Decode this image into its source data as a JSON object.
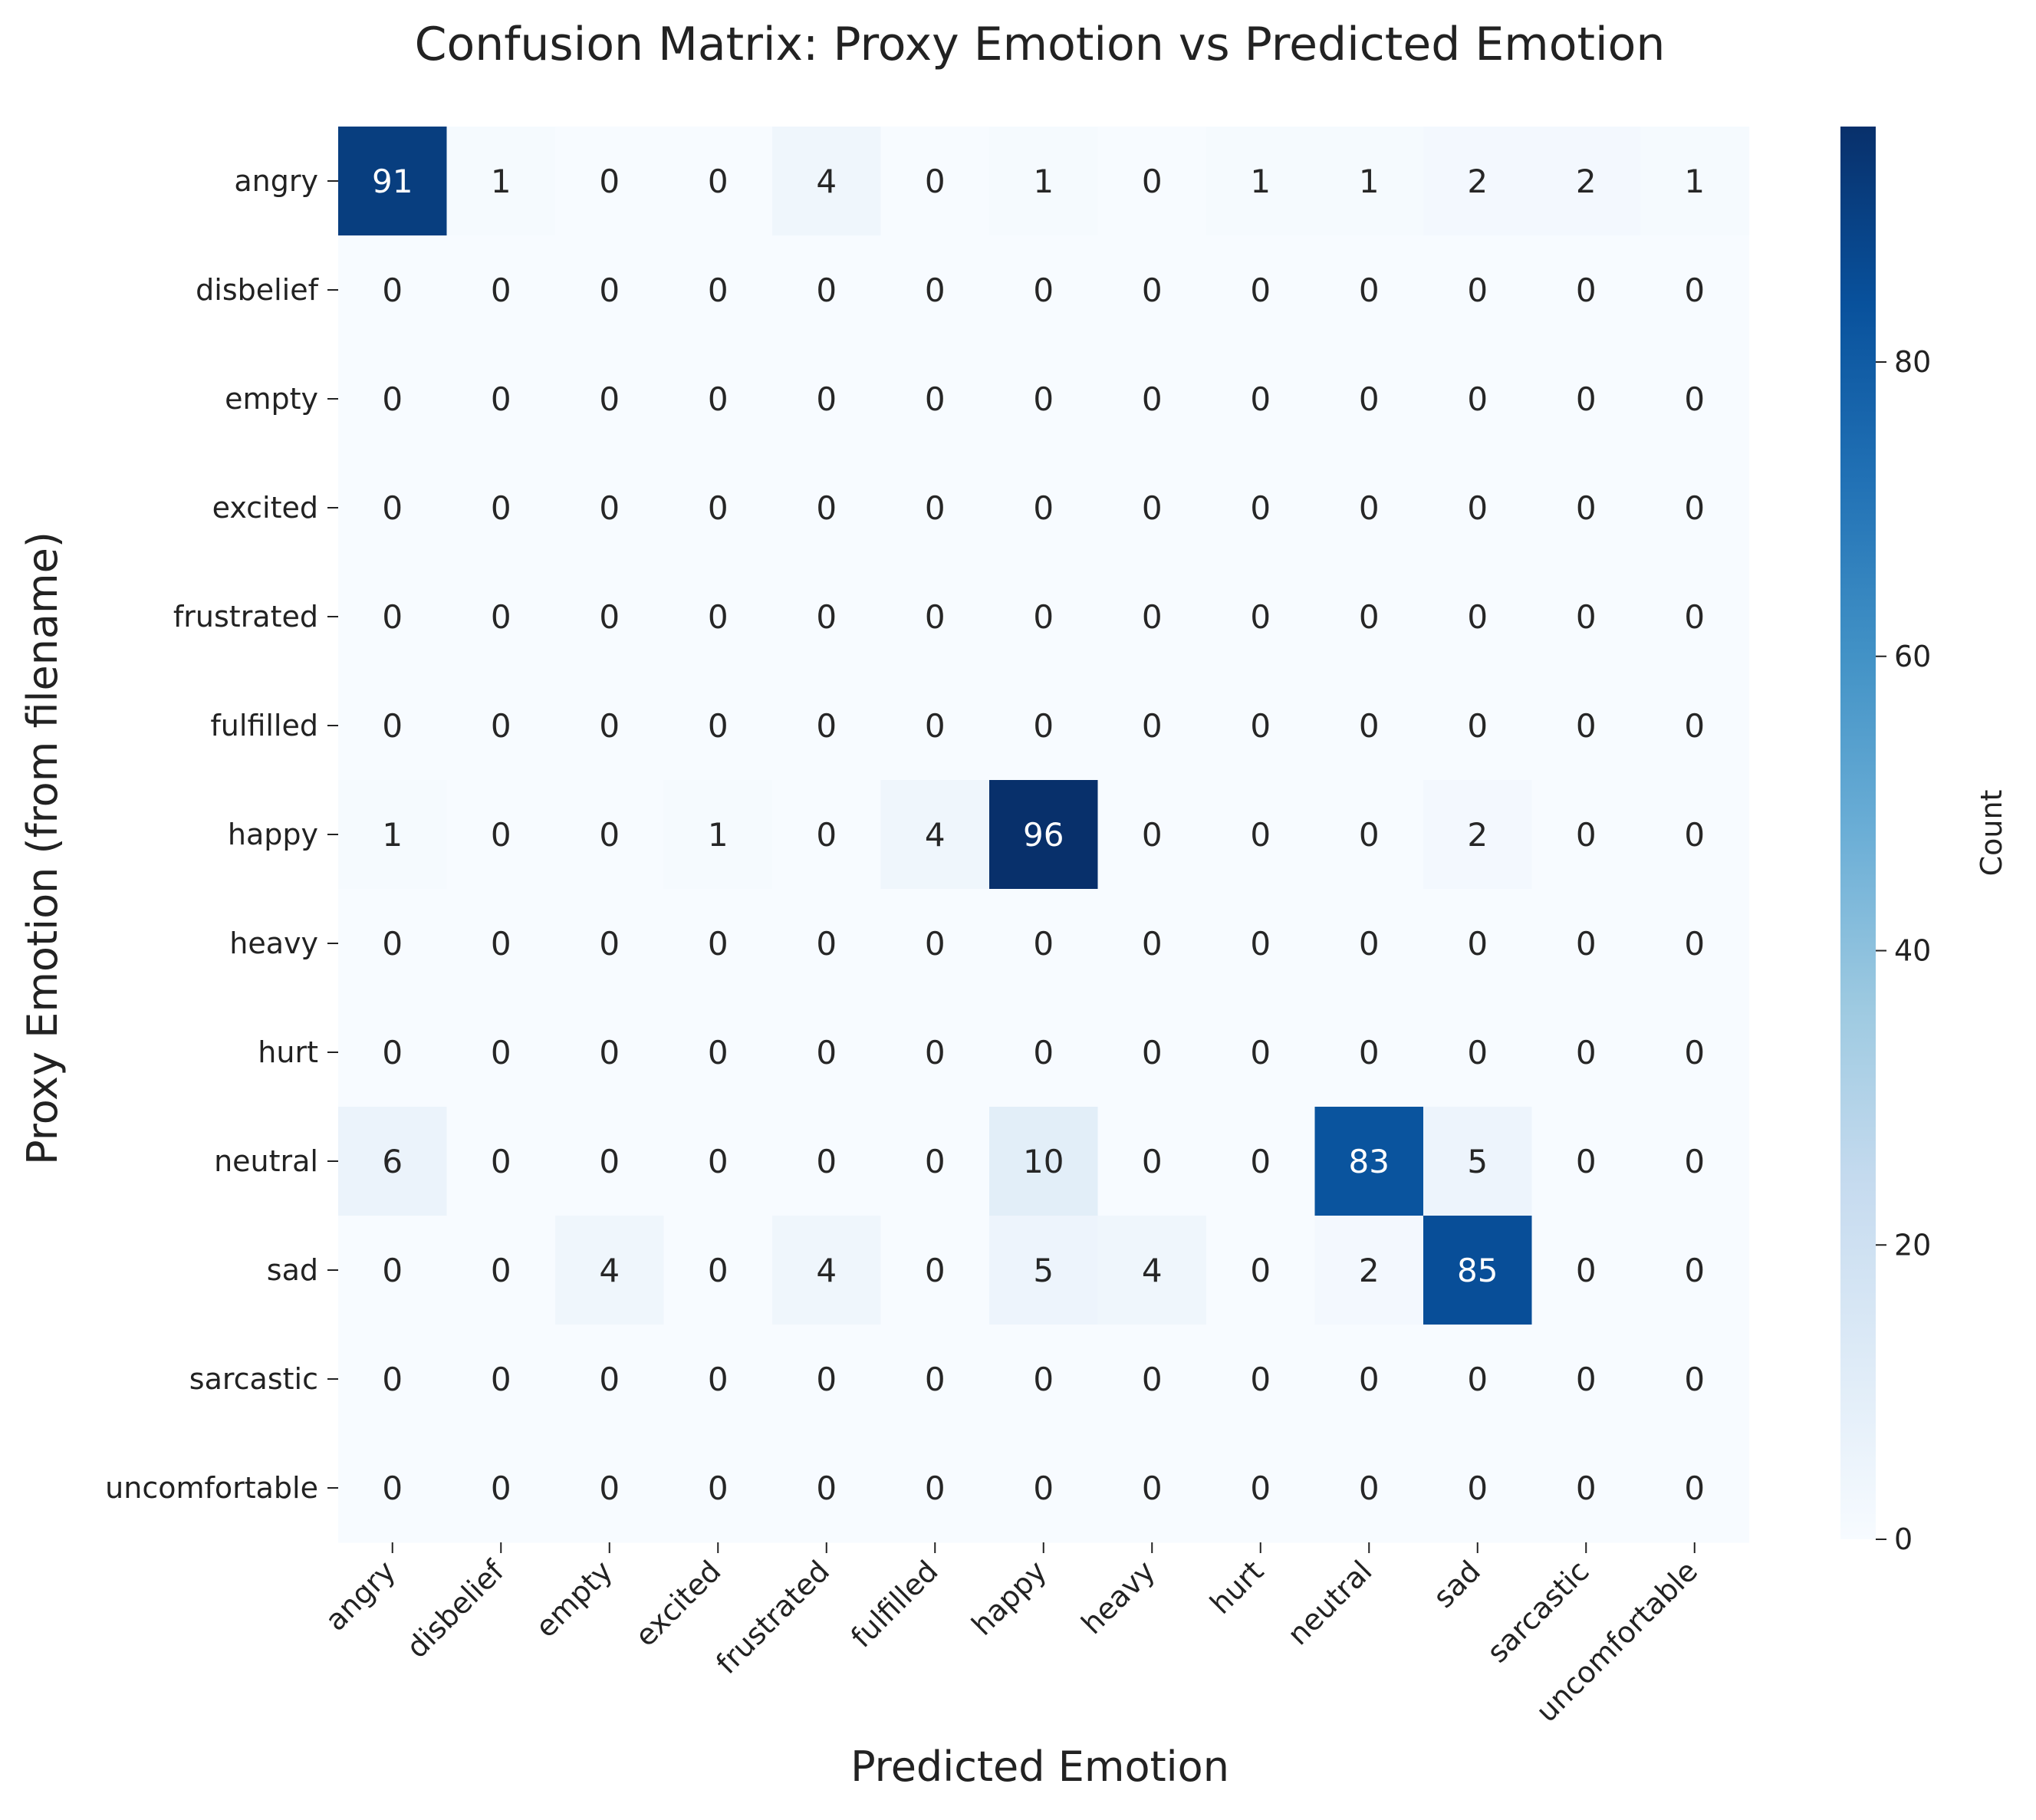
{
  "chart_data": {
    "type": "heatmap",
    "title": "Confusion Matrix: Proxy Emotion vs Predicted Emotion",
    "xlabel": "Predicted Emotion",
    "ylabel": "Proxy Emotion (from filename)",
    "x_categories": [
      "angry",
      "disbelief",
      "empty",
      "excited",
      "frustrated",
      "fulfilled",
      "happy",
      "heavy",
      "hurt",
      "neutral",
      "sad",
      "sarcastic",
      "uncomfortable"
    ],
    "y_categories": [
      "angry",
      "disbelief",
      "empty",
      "excited",
      "frustrated",
      "fulfilled",
      "happy",
      "heavy",
      "hurt",
      "neutral",
      "sad",
      "sarcastic",
      "uncomfortable"
    ],
    "values": [
      [
        91,
        1,
        0,
        0,
        4,
        0,
        1,
        0,
        1,
        1,
        2,
        2,
        1
      ],
      [
        0,
        0,
        0,
        0,
        0,
        0,
        0,
        0,
        0,
        0,
        0,
        0,
        0
      ],
      [
        0,
        0,
        0,
        0,
        0,
        0,
        0,
        0,
        0,
        0,
        0,
        0,
        0
      ],
      [
        0,
        0,
        0,
        0,
        0,
        0,
        0,
        0,
        0,
        0,
        0,
        0,
        0
      ],
      [
        0,
        0,
        0,
        0,
        0,
        0,
        0,
        0,
        0,
        0,
        0,
        0,
        0
      ],
      [
        0,
        0,
        0,
        0,
        0,
        0,
        0,
        0,
        0,
        0,
        0,
        0,
        0
      ],
      [
        1,
        0,
        0,
        1,
        0,
        4,
        96,
        0,
        0,
        0,
        2,
        0,
        0
      ],
      [
        0,
        0,
        0,
        0,
        0,
        0,
        0,
        0,
        0,
        0,
        0,
        0,
        0
      ],
      [
        0,
        0,
        0,
        0,
        0,
        0,
        0,
        0,
        0,
        0,
        0,
        0,
        0
      ],
      [
        6,
        0,
        0,
        0,
        0,
        0,
        10,
        0,
        0,
        83,
        5,
        0,
        0
      ],
      [
        0,
        0,
        4,
        0,
        4,
        0,
        5,
        4,
        0,
        2,
        85,
        0,
        0
      ],
      [
        0,
        0,
        0,
        0,
        0,
        0,
        0,
        0,
        0,
        0,
        0,
        0,
        0
      ],
      [
        0,
        0,
        0,
        0,
        0,
        0,
        0,
        0,
        0,
        0,
        0,
        0,
        0
      ]
    ],
    "colormap": "Blues",
    "vmin": 0,
    "vmax": 96,
    "colorbar": {
      "label": "Count",
      "ticks": [
        0,
        20,
        40,
        60,
        80
      ]
    },
    "grid": false,
    "legend": "colorbar-right"
  }
}
